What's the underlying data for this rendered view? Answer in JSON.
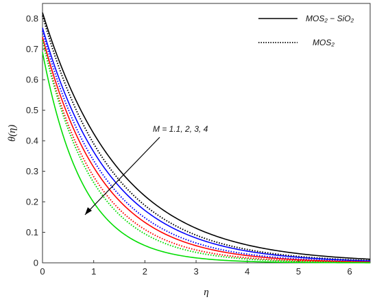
{
  "chart_data": {
    "type": "line",
    "xlabel": "η",
    "ylabel": "θ(η)",
    "xlim": [
      0,
      6.4
    ],
    "ylim": [
      0,
      0.85
    ],
    "xticks": [
      "0",
      "1",
      "2",
      "3",
      "4",
      "5",
      "6"
    ],
    "yticks": [
      "0",
      "0.1",
      "0.2",
      "0.3",
      "0.4",
      "0.5",
      "0.6",
      "0.7",
      "0.8"
    ],
    "legend": {
      "position": "top-right",
      "entries": [
        {
          "label": "MOS₂ − SiO₂",
          "style": "solid"
        },
        {
          "label": "MOS₂",
          "style": "dotted"
        }
      ]
    },
    "annotation": {
      "text": "M = 1.1, 2, 3, 4",
      "arrow": "points toward decreasing curves"
    },
    "grid": false,
    "series": [
      {
        "color": "#000000",
        "style": "solid",
        "theta0": 0.82,
        "decay": 0.66
      },
      {
        "color": "#000000",
        "style": "dotted",
        "theta0": 0.81,
        "decay": 0.73
      },
      {
        "color": "#0000ff",
        "style": "solid",
        "theta0": 0.77,
        "decay": 0.75
      },
      {
        "color": "#0000ff",
        "style": "dotted",
        "theta0": 0.76,
        "decay": 0.82
      },
      {
        "color": "#ff0000",
        "style": "solid",
        "theta0": 0.74,
        "decay": 0.86
      },
      {
        "color": "#ff0000",
        "style": "dotted",
        "theta0": 0.73,
        "decay": 0.95
      },
      {
        "color": "#00dd00",
        "style": "solid",
        "theta0": 0.69,
        "decay": 1.25
      },
      {
        "color": "#00dd00",
        "style": "dotted",
        "theta0": 0.73,
        "decay": 1.02
      }
    ]
  }
}
